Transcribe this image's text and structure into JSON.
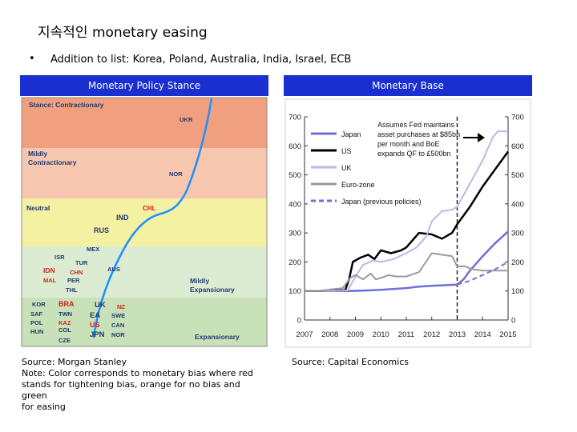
{
  "slide": {
    "title": "지속적인 monetary easing",
    "bullet_marker": "•",
    "bullet_text": "Addition to list: Korea, Poland, Australia, India, Israel, ECB"
  },
  "left_panel": {
    "header": "Monetary Policy Stance",
    "source_lines": [
      "Source: Morgan Stanley",
      "Note: Color corresponds to monetary bias where red",
      "stands for tightening bias, orange for no bias and green",
      "for easing"
    ]
  },
  "right_panel": {
    "header": "Monetary Base",
    "source": "Source: Capital Economics"
  },
  "colors": {
    "header_blue": "#1a2fd0",
    "contractionary": "#f0a07e",
    "mildly_contractionary": "#f7c6ae",
    "neutral": "#f4f1a2",
    "mildly_expansionary": "#dcecd2",
    "expansionary": "#c8e1b8",
    "curve": "#1e90ff",
    "text_red": "#d42020",
    "text_navy": "#1f3a6e",
    "japan": "#6f6fd8",
    "us": "#000000",
    "uk": "#b9b9e8",
    "eurozone": "#9a9a9a"
  },
  "chart_data": [
    {
      "type": "diagram",
      "title": "Monetary Policy Stance",
      "zones": [
        {
          "label": "Stance: Contractionary",
          "color": "contractionary"
        },
        {
          "label": "Mildly Contractionary",
          "color": "mildly_contractionary"
        },
        {
          "label": "Neutral",
          "color": "neutral"
        },
        {
          "label": "Mildly Expansionary",
          "color": "mildly_expansionary"
        },
        {
          "label": "Expansionary",
          "color": "expansionary"
        }
      ],
      "countries": [
        {
          "code": "UKR",
          "bias": "easing",
          "zone": "Contractionary"
        },
        {
          "code": "NOR",
          "bias": "easing",
          "zone": "Mildly Contractionary"
        },
        {
          "code": "CHL",
          "bias": "tightening",
          "zone": "Neutral"
        },
        {
          "code": "IND",
          "bias": "easing",
          "zone": "Neutral"
        },
        {
          "code": "RUS",
          "bias": "easing",
          "zone": "Neutral"
        },
        {
          "code": "MEX",
          "bias": "easing",
          "zone": "Mildly Expansionary"
        },
        {
          "code": "ISR",
          "bias": "easing",
          "zone": "Mildly Expansionary"
        },
        {
          "code": "TUR",
          "bias": "easing",
          "zone": "Mildly Expansionary"
        },
        {
          "code": "AUS",
          "bias": "easing",
          "zone": "Mildly Expansionary"
        },
        {
          "code": "IDN",
          "bias": "tightening",
          "zone": "Mildly Expansionary"
        },
        {
          "code": "CHN",
          "bias": "tightening",
          "zone": "Mildly Expansionary"
        },
        {
          "code": "MAL",
          "bias": "tightening",
          "zone": "Mildly Expansionary"
        },
        {
          "code": "PER",
          "bias": "easing",
          "zone": "Mildly Expansionary"
        },
        {
          "code": "THL",
          "bias": "easing",
          "zone": "Mildly Expansionary"
        },
        {
          "code": "KOR",
          "bias": "easing",
          "zone": "Expansionary"
        },
        {
          "code": "BRA",
          "bias": "tightening",
          "zone": "Expansionary"
        },
        {
          "code": "UK",
          "bias": "easing",
          "zone": "Expansionary"
        },
        {
          "code": "NZ",
          "bias": "tightening",
          "zone": "Expansionary"
        },
        {
          "code": "SAF",
          "bias": "easing",
          "zone": "Expansionary"
        },
        {
          "code": "TWN",
          "bias": "easing",
          "zone": "Expansionary"
        },
        {
          "code": "EA",
          "bias": "easing",
          "zone": "Expansionary"
        },
        {
          "code": "SWE",
          "bias": "easing",
          "zone": "Expansionary"
        },
        {
          "code": "POL",
          "bias": "easing",
          "zone": "Expansionary"
        },
        {
          "code": "KAZ",
          "bias": "tightening",
          "zone": "Expansionary"
        },
        {
          "code": "US",
          "bias": "tightening",
          "zone": "Expansionary"
        },
        {
          "code": "CAN",
          "bias": "easing",
          "zone": "Expansionary"
        },
        {
          "code": "HUN",
          "bias": "easing",
          "zone": "Expansionary"
        },
        {
          "code": "COL",
          "bias": "easing",
          "zone": "Expansionary"
        },
        {
          "code": "JPN",
          "bias": "easing",
          "zone": "Expansionary"
        },
        {
          "code": "NOR",
          "bias": "easing",
          "zone": "Expansionary"
        },
        {
          "code": "CZE",
          "bias": "easing",
          "zone": "Expansionary"
        }
      ]
    },
    {
      "type": "line",
      "title": "Monetary Base",
      "x_ticks": [
        "2007",
        "2008",
        "2009",
        "2010",
        "2011",
        "2012",
        "2013",
        "2014",
        "2015"
      ],
      "y_ticks": [
        0,
        100,
        200,
        300,
        400,
        500,
        600,
        700
      ],
      "ylim": [
        0,
        700
      ],
      "xlim": [
        2007,
        2015
      ],
      "grid": false,
      "vline_x": 2013,
      "annotation": [
        "Assumes Fed maintains",
        "asset purchases at $85bn",
        "per month and BoE",
        "expands QF to £500bn"
      ],
      "series": [
        {
          "name": "Japan",
          "color": "japan",
          "style": "solid",
          "points": [
            [
              2007.0,
              100
            ],
            [
              2008.0,
              100
            ],
            [
              2008.8,
              100
            ],
            [
              2009.5,
              102
            ],
            [
              2010.0,
              104
            ],
            [
              2010.5,
              107
            ],
            [
              2011.0,
              110
            ],
            [
              2011.5,
              115
            ],
            [
              2012.0,
              118
            ],
            [
              2012.5,
              120
            ],
            [
              2013.0,
              122
            ],
            [
              2013.25,
              140
            ],
            [
              2013.5,
              170
            ],
            [
              2014.0,
              220
            ],
            [
              2014.5,
              265
            ],
            [
              2015.0,
              305
            ]
          ]
        },
        {
          "name": "US",
          "color": "us",
          "style": "solid",
          "points": [
            [
              2007.0,
              100
            ],
            [
              2007.8,
              100
            ],
            [
              2008.6,
              103
            ],
            [
              2008.75,
              140
            ],
            [
              2008.9,
              200
            ],
            [
              2009.2,
              215
            ],
            [
              2009.5,
              225
            ],
            [
              2009.75,
              210
            ],
            [
              2010.0,
              240
            ],
            [
              2010.4,
              230
            ],
            [
              2010.8,
              240
            ],
            [
              2011.0,
              250
            ],
            [
              2011.5,
              300
            ],
            [
              2012.0,
              295
            ],
            [
              2012.4,
              280
            ],
            [
              2012.8,
              300
            ],
            [
              2013.0,
              330
            ],
            [
              2013.5,
              390
            ],
            [
              2014.0,
              460
            ],
            [
              2014.5,
              520
            ],
            [
              2015.0,
              580
            ]
          ]
        },
        {
          "name": "UK",
          "color": "uk",
          "style": "solid",
          "points": [
            [
              2007.0,
              100
            ],
            [
              2008.0,
              100
            ],
            [
              2008.7,
              102
            ],
            [
              2009.0,
              150
            ],
            [
              2009.3,
              190
            ],
            [
              2009.7,
              205
            ],
            [
              2010.0,
              200
            ],
            [
              2010.5,
              210
            ],
            [
              2011.0,
              230
            ],
            [
              2011.4,
              250
            ],
            [
              2011.8,
              290
            ],
            [
              2012.0,
              340
            ],
            [
              2012.4,
              375
            ],
            [
              2012.8,
              380
            ],
            [
              2013.0,
              390
            ],
            [
              2013.5,
              470
            ],
            [
              2014.0,
              550
            ],
            [
              2014.4,
              630
            ],
            [
              2014.6,
              650
            ],
            [
              2015.0,
              650
            ]
          ]
        },
        {
          "name": "Euro-zone",
          "color": "eurozone",
          "style": "solid",
          "points": [
            [
              2007.0,
              100
            ],
            [
              2007.5,
              100
            ],
            [
              2008.0,
              105
            ],
            [
              2008.5,
              110
            ],
            [
              2008.8,
              145
            ],
            [
              2009.0,
              155
            ],
            [
              2009.3,
              140
            ],
            [
              2009.6,
              160
            ],
            [
              2009.8,
              140
            ],
            [
              2010.0,
              145
            ],
            [
              2010.3,
              155
            ],
            [
              2010.6,
              150
            ],
            [
              2011.0,
              150
            ],
            [
              2011.5,
              165
            ],
            [
              2012.0,
              230
            ],
            [
              2012.4,
              225
            ],
            [
              2012.8,
              220
            ],
            [
              2013.0,
              185
            ],
            [
              2013.3,
              185
            ],
            [
              2013.6,
              175
            ],
            [
              2014.0,
              170
            ],
            [
              2015.0,
              170
            ]
          ]
        },
        {
          "name": "Japan (previous policies)",
          "color": "japan",
          "style": "dashed",
          "points": [
            [
              2013.0,
              122
            ],
            [
              2013.5,
              135
            ],
            [
              2014.0,
              155
            ],
            [
              2014.5,
              175
            ],
            [
              2015.0,
              200
            ]
          ]
        }
      ]
    }
  ]
}
